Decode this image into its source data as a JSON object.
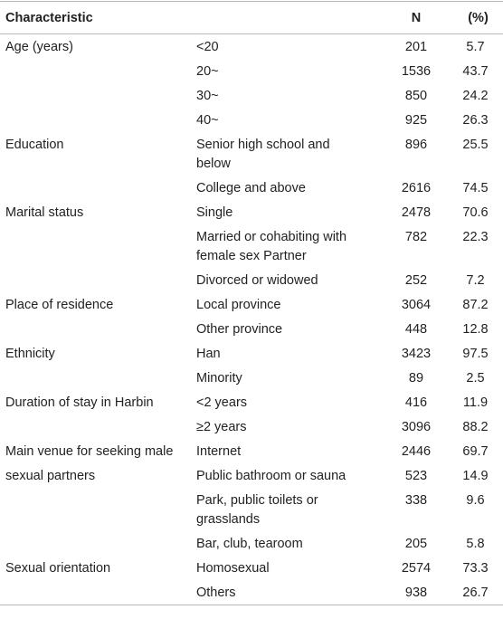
{
  "table": {
    "header": [
      "Characteristic",
      "N",
      "(%)"
    ],
    "groups": [
      {
        "characteristic": "Age (years)",
        "rows": [
          [
            "<20",
            201,
            5.7
          ],
          [
            "20~",
            1536,
            43.7
          ],
          [
            "30~",
            850,
            24.2
          ],
          [
            "40~",
            925,
            26.3
          ]
        ]
      },
      {
        "characteristic": "Education",
        "rows": [
          [
            "Senior high school and below",
            896,
            25.5
          ],
          [
            "College and above",
            2616,
            74.5
          ]
        ]
      },
      {
        "characteristic": "Marital status",
        "rows": [
          [
            "Single",
            2478,
            70.6
          ],
          [
            "Married or cohabiting with female sex Partner",
            782,
            22.3
          ],
          [
            "Divorced or widowed",
            252,
            7.2
          ]
        ]
      },
      {
        "characteristic": "Place of residence",
        "rows": [
          [
            "Local province",
            3064,
            87.2
          ],
          [
            "Other province",
            448,
            12.8
          ]
        ]
      },
      {
        "characteristic": "Ethnicity",
        "rows": [
          [
            "Han",
            3423,
            97.5
          ],
          [
            "Minority",
            89,
            2.5
          ]
        ]
      },
      {
        "characteristic": "Duration of stay in Harbin",
        "rows": [
          [
            "<2 years",
            416,
            11.9
          ],
          [
            "≥2 years",
            3096,
            88.2
          ]
        ]
      },
      {
        "characteristic": "Main venue for seeking male sexual partners",
        "rows": [
          [
            "Internet",
            2446,
            69.7
          ],
          [
            "Public bathroom or sauna",
            523,
            14.9
          ],
          [
            "Park, public toilets or grasslands",
            338,
            9.6
          ],
          [
            "Bar, club, tearoom",
            205,
            5.8
          ]
        ]
      },
      {
        "characteristic": "Sexual orientation",
        "rows": [
          [
            "Homosexual",
            2574,
            73.3
          ],
          [
            "Others",
            938,
            26.7
          ]
        ]
      }
    ]
  }
}
